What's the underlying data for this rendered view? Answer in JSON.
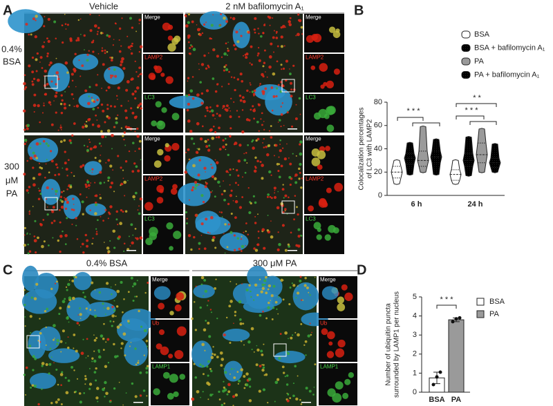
{
  "panel_labels": [
    "A",
    "B",
    "C",
    "D"
  ],
  "panel_a": {
    "columns": [
      "Vehicle",
      "2 nM bafilomycin A₁"
    ],
    "rows": [
      [
        "0.4%",
        "BSA"
      ],
      [
        "300",
        "μM",
        "PA"
      ]
    ],
    "insets": [
      "Merge",
      "LAMP2",
      "LC3"
    ]
  },
  "panel_c": {
    "columns": [
      "0.4% BSA",
      "300 μM PA"
    ],
    "insets": [
      "Merge",
      "Ub",
      "LAMP1"
    ]
  },
  "chart_data": [
    {
      "type": "violin",
      "ylabel": [
        "Colocalization percentages",
        "of LC3 with LAMP2"
      ],
      "categories": [
        "6 h",
        "24 h"
      ],
      "ylim": [
        0,
        80
      ],
      "yticks": [
        0,
        20,
        40,
        60,
        80
      ],
      "annotations": [
        "* * *",
        "* *",
        "* * *"
      ],
      "series": [
        {
          "name": "BSA",
          "color": "#ffffff",
          "pattern": "solid",
          "min": [
            10,
            10
          ],
          "q1": [
            15,
            13
          ],
          "median": [
            20,
            18
          ],
          "q3": [
            25,
            22
          ],
          "max": [
            30,
            30
          ]
        },
        {
          "name": "BSA + bafilomycin A₁",
          "color": "#ffffff",
          "pattern": "dotted",
          "min": [
            18,
            17
          ],
          "q1": [
            27,
            25
          ],
          "median": [
            32,
            30
          ],
          "q3": [
            36,
            36
          ],
          "max": [
            45,
            50
          ]
        },
        {
          "name": "PA",
          "color": "#9a9a9a",
          "pattern": "solid",
          "min": [
            20,
            20
          ],
          "q1": [
            25,
            28
          ],
          "median": [
            30,
            35
          ],
          "q3": [
            38,
            45
          ],
          "max": [
            59,
            57
          ]
        },
        {
          "name": "PA + bafilomycin A₁",
          "color": "#b4b4b4",
          "pattern": "dotted",
          "min": [
            18,
            20
          ],
          "q1": [
            28,
            24
          ],
          "median": [
            33,
            28
          ],
          "q3": [
            38,
            32
          ],
          "max": [
            48,
            44
          ]
        }
      ]
    },
    {
      "type": "bar",
      "ylabel": [
        "Number of ubiquitin puncta",
        "surrounded by LAMP1 per nucleus"
      ],
      "categories": [
        "BSA",
        "PA"
      ],
      "values": [
        0.75,
        3.8
      ],
      "errors": [
        0.3,
        0.1
      ],
      "points": [
        [
          0.4,
          0.8,
          1.05
        ],
        [
          3.7,
          3.85,
          3.9
        ]
      ],
      "colors": [
        "#ffffff",
        "#9a9a9a"
      ],
      "ylim": [
        0,
        5
      ],
      "yticks": [
        0,
        1,
        2,
        3,
        4,
        5
      ],
      "annotations": [
        "* * *"
      ]
    }
  ]
}
